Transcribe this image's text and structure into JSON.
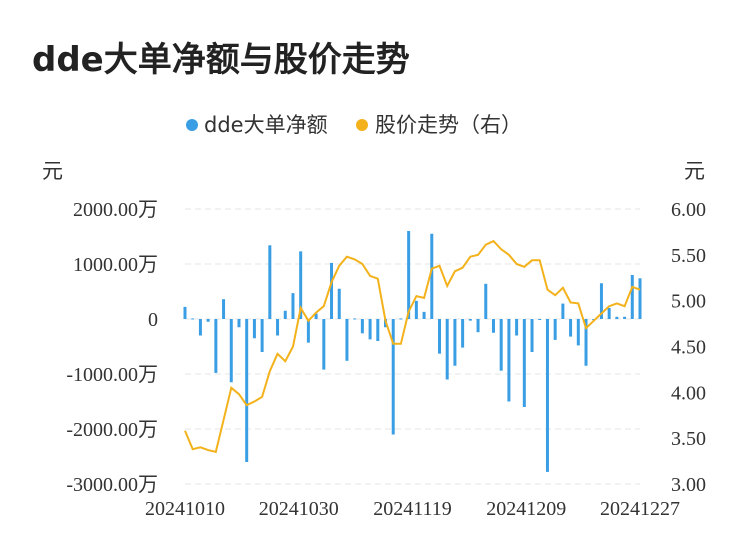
{
  "title": "dde大单净额与股价走势",
  "chart_data": {
    "type": "bar+line",
    "legend": {
      "placement": "top-center",
      "items": [
        {
          "name": "dde大单净额",
          "color": "#3a9ee4"
        },
        {
          "name": "股价走势（右）",
          "color": "#f3b21b"
        }
      ]
    },
    "left_axis": {
      "unit": "元",
      "ticks": [
        "2000.00万",
        "1000.00万",
        "0",
        "-1000.00万",
        "-2000.00万",
        "-3000.00万"
      ],
      "ylim": [
        -3000,
        2000
      ]
    },
    "right_axis": {
      "unit": "元",
      "ticks": [
        "6.00",
        "5.50",
        "5.00",
        "4.50",
        "4.00",
        "3.50",
        "3.00"
      ],
      "ylim": [
        3.0,
        6.0
      ]
    },
    "x_ticks": [
      "20241010",
      "20241030",
      "20241119",
      "20241209",
      "20241227"
    ],
    "grid": true,
    "series": [
      {
        "name": "dde大单净额",
        "kind": "bar",
        "values": [
          220,
          10,
          -300,
          -50,
          -980,
          360,
          -1150,
          -150,
          -2600,
          -350,
          -600,
          1340,
          -300,
          150,
          470,
          1230,
          -430,
          100,
          -920,
          1020,
          550,
          -760,
          10,
          -260,
          -370,
          -400,
          -150,
          -2100,
          10,
          1600,
          330,
          130,
          1550,
          -630,
          -1100,
          -850,
          -520,
          -30,
          -240,
          640,
          -250,
          -940,
          -1500,
          -300,
          -1600,
          -600,
          -10,
          -2780,
          -380,
          280,
          -320,
          -480,
          -850,
          -20,
          650,
          200,
          40,
          40,
          800,
          740
        ]
      },
      {
        "name": "股价走势（右）",
        "kind": "line",
        "values": [
          3.58,
          3.38,
          3.4,
          3.37,
          3.35,
          3.7,
          4.05,
          3.98,
          3.86,
          3.9,
          3.95,
          4.23,
          4.42,
          4.34,
          4.5,
          4.92,
          4.78,
          4.87,
          4.94,
          5.2,
          5.38,
          5.48,
          5.45,
          5.4,
          5.27,
          5.24,
          4.78,
          4.53,
          4.53,
          4.88,
          5.05,
          5.03,
          5.35,
          5.38,
          5.16,
          5.32,
          5.36,
          5.48,
          5.5,
          5.61,
          5.65,
          5.56,
          5.5,
          5.4,
          5.37,
          5.44,
          5.44,
          5.12,
          5.06,
          5.14,
          4.98,
          4.97,
          4.7,
          4.78,
          4.86,
          4.94,
          4.97,
          4.94,
          5.15,
          5.12
        ]
      }
    ]
  }
}
